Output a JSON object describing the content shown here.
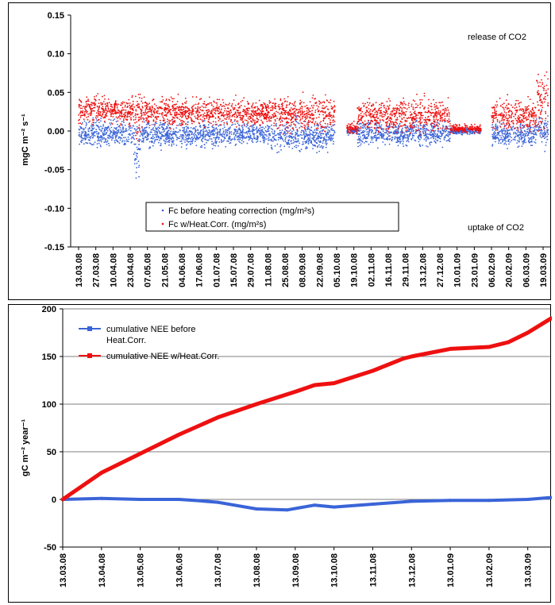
{
  "chart_data": [
    {
      "type": "scatter",
      "ylabel": "mgC m⁻² s⁻¹",
      "ylim": [
        -0.15,
        0.15
      ],
      "yticks": [
        "0.15",
        "0.10",
        "0.05",
        "0.00",
        "-0.05",
        "-0.10",
        "-0.15"
      ],
      "ytick_values": [
        0.15,
        0.1,
        0.05,
        0.0,
        -0.05,
        -0.1,
        -0.15
      ],
      "xticks": [
        "13.03.08",
        "27.03.08",
        "10.04.08",
        "23.04.08",
        "07.05.08",
        "21.05.08",
        "04.06.08",
        "17.06.08",
        "01.07.08",
        "15.07.08",
        "29.07.08",
        "11.08.08",
        "25.08.08",
        "08.09.08",
        "22.09.08",
        "05.10.08",
        "19.10.08",
        "02.11.08",
        "16.11.08",
        "29.11.08",
        "13.12.08",
        "27.12.08",
        "10.01.09",
        "23.01.09",
        "06.02.09",
        "20.02.09",
        "06.03.09",
        "19.03.09"
      ],
      "annotations": {
        "release": "release of CO2",
        "uptake": "uptake of CO2"
      },
      "legend_position": "bottom-left",
      "series": [
        {
          "name": "Fc before heating correction (mg/m²s)",
          "color": "#3a64d8",
          "segments": [
            {
              "x0": 0,
              "x1": 3.2,
              "mean": -0.003,
              "spread": 0.016
            },
            {
              "x0": 3.2,
              "x1": 3.6,
              "mean": -0.02,
              "spread": 0.04
            },
            {
              "x0": 3.6,
              "x1": 11.2,
              "mean": -0.004,
              "spread": 0.015
            },
            {
              "x0": 11.2,
              "x1": 14.9,
              "mean": -0.006,
              "spread": 0.018
            },
            {
              "x0": 15.6,
              "x1": 16.2,
              "mean": 0.0,
              "spread": 0.004
            },
            {
              "x0": 16.2,
              "x1": 21.6,
              "mean": -0.003,
              "spread": 0.015
            },
            {
              "x0": 21.6,
              "x1": 23.4,
              "mean": 0.0,
              "spread": 0.004
            },
            {
              "x0": 24.0,
              "x1": 26.6,
              "mean": -0.004,
              "spread": 0.013
            },
            {
              "x0": 26.6,
              "x1": 27.3,
              "mean": 0.0,
              "spread": 0.02
            }
          ]
        },
        {
          "name": "Fc w/Heat.Corr. (mg/m²s)",
          "color": "#ee1010",
          "segments": [
            {
              "x0": 0,
              "x1": 3.2,
              "mean": 0.027,
              "spread": 0.016
            },
            {
              "x0": 3.2,
              "x1": 3.6,
              "mean": 0.02,
              "spread": 0.03
            },
            {
              "x0": 3.6,
              "x1": 11.2,
              "mean": 0.024,
              "spread": 0.016
            },
            {
              "x0": 11.2,
              "x1": 14.9,
              "mean": 0.022,
              "spread": 0.02
            },
            {
              "x0": 15.6,
              "x1": 16.2,
              "mean": 0.004,
              "spread": 0.006
            },
            {
              "x0": 16.2,
              "x1": 21.6,
              "mean": 0.02,
              "spread": 0.02
            },
            {
              "x0": 21.6,
              "x1": 23.4,
              "mean": 0.003,
              "spread": 0.005
            },
            {
              "x0": 24.0,
              "x1": 26.6,
              "mean": 0.02,
              "spread": 0.018
            },
            {
              "x0": 26.6,
              "x1": 27.3,
              "mean": 0.04,
              "spread": 0.035
            }
          ]
        }
      ]
    },
    {
      "type": "line",
      "ylabel": "gC m⁻² year⁻¹",
      "ylim": [
        -50,
        200
      ],
      "yticks": [
        "200",
        "150",
        "100",
        "50",
        "0",
        "-50"
      ],
      "ytick_values": [
        200,
        150,
        100,
        50,
        0,
        -50
      ],
      "xticks": [
        "13.03.08",
        "13.04.08",
        "13.05.08",
        "13.06.08",
        "13.07.08",
        "13.08.08",
        "13.09.08",
        "13.10.08",
        "13.11.08",
        "13.12.08",
        "13.01.09",
        "13.02.09",
        "13.03.09"
      ],
      "grid": true,
      "legend_position": "top-left",
      "series": [
        {
          "name": "cumulative NEE before Heat.Corr.",
          "color": "#3a64d8",
          "x": [
            0,
            1,
            2,
            3,
            3.4,
            4,
            5,
            5.8,
            6.5,
            7,
            8,
            9,
            10,
            11,
            12,
            12.6
          ],
          "y": [
            0,
            1,
            0,
            0,
            -1,
            -3,
            -10,
            -11,
            -6,
            -8,
            -5,
            -2,
            -1,
            -1,
            0,
            2
          ]
        },
        {
          "name": "cumulative NEE w/Heat.Corr.",
          "color": "#ee1010",
          "x": [
            0,
            1,
            2,
            3,
            4,
            5,
            6,
            6.5,
            7,
            8,
            8.8,
            9,
            10,
            11,
            11.5,
            12,
            12.6
          ],
          "y": [
            0,
            28,
            48,
            68,
            86,
            100,
            113,
            120,
            122,
            135,
            148,
            150,
            158,
            160,
            165,
            175,
            190
          ]
        }
      ]
    }
  ],
  "legend": {
    "top": {
      "item1": "Fc before heating correction (mg/m²s)",
      "item2": "Fc w/Heat.Corr. (mg/m²s)"
    },
    "bottom": {
      "item1_line1": "cumulative NEE before",
      "item1_line2": "Heat.Corr.",
      "item2": "cumulative NEE w/Heat.Corr."
    }
  }
}
